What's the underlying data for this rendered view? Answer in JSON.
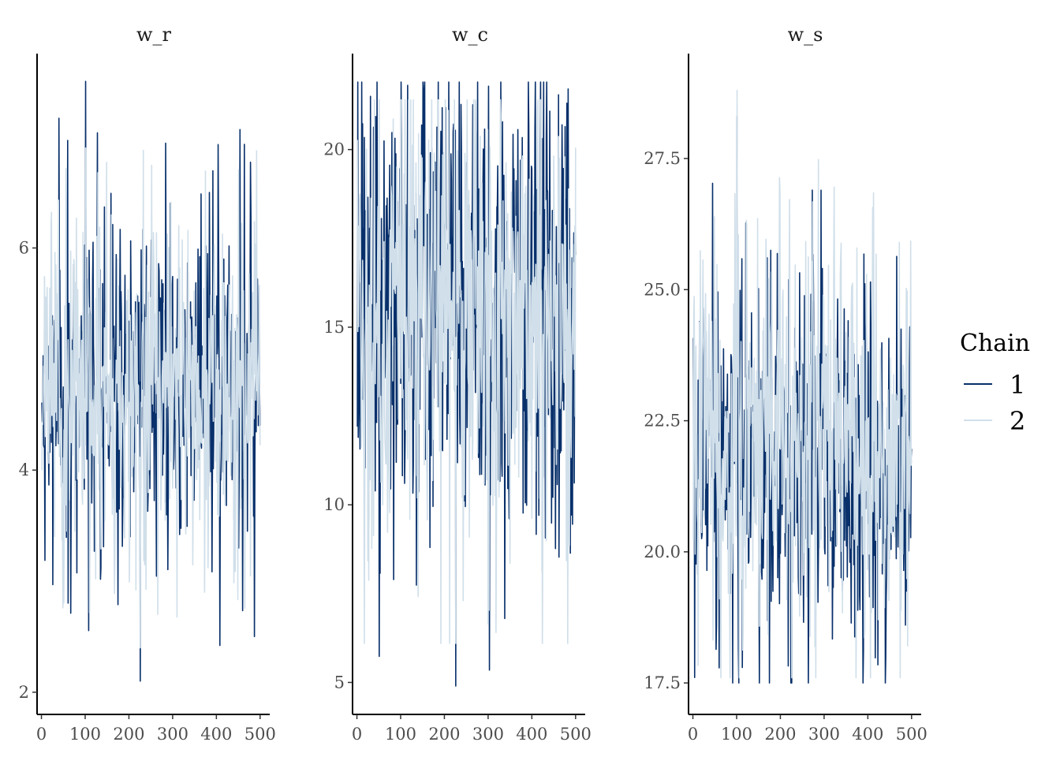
{
  "chart_data": [
    {
      "type": "line",
      "title": "w_r",
      "xlabel": "",
      "ylabel": "",
      "xlim": [
        -10,
        522
      ],
      "ylim": [
        1.8,
        7.75
      ],
      "x_ticks": [
        0,
        100,
        200,
        300,
        400,
        500
      ],
      "y_ticks": [
        2,
        4,
        6
      ],
      "iterations": 500,
      "series": [
        {
          "name": "1",
          "color": "#08306b",
          "center": 4.8,
          "spread": 0.6,
          "min": 2.1,
          "max": 7.5,
          "seed": 11
        },
        {
          "name": "2",
          "color": "#d0dfea",
          "center": 4.7,
          "spread": 0.55,
          "min": 2.4,
          "max": 6.9,
          "seed": 23
        }
      ]
    },
    {
      "type": "line",
      "title": "w_c",
      "xlabel": "",
      "ylabel": "",
      "xlim": [
        -10,
        522
      ],
      "ylim": [
        4.1,
        22.7
      ],
      "x_ticks": [
        0,
        100,
        200,
        300,
        400,
        500
      ],
      "y_ticks": [
        5,
        10,
        15,
        20
      ],
      "iterations": 500,
      "series": [
        {
          "name": "1",
          "color": "#08306b",
          "center": 15.5,
          "spread": 2.6,
          "min": 4.9,
          "max": 21.9,
          "seed": 37
        },
        {
          "name": "2",
          "color": "#d0dfea",
          "center": 15.5,
          "spread": 2.5,
          "min": 6.1,
          "max": 21.4,
          "seed": 41
        }
      ]
    },
    {
      "type": "line",
      "title": "w_s",
      "xlabel": "",
      "ylabel": "",
      "xlim": [
        -10,
        522
      ],
      "ylim": [
        16.9,
        29.5
      ],
      "x_ticks": [
        0,
        100,
        200,
        300,
        400,
        500
      ],
      "y_ticks": [
        17.5,
        20.0,
        22.5,
        25.0,
        27.5
      ],
      "tick_format": "one_decimal",
      "iterations": 500,
      "series": [
        {
          "name": "1",
          "color": "#08306b",
          "center": 21.8,
          "spread": 1.4,
          "min": 17.5,
          "max": 28.3,
          "seed": 53
        },
        {
          "name": "2",
          "color": "#d0dfea",
          "center": 21.8,
          "spread": 1.35,
          "min": 17.6,
          "max": 28.8,
          "seed": 67
        }
      ]
    }
  ],
  "legend": {
    "title": "Chain",
    "items": [
      {
        "label": "1",
        "color": "#08306b"
      },
      {
        "label": "2",
        "color": "#d0dfea"
      }
    ]
  }
}
